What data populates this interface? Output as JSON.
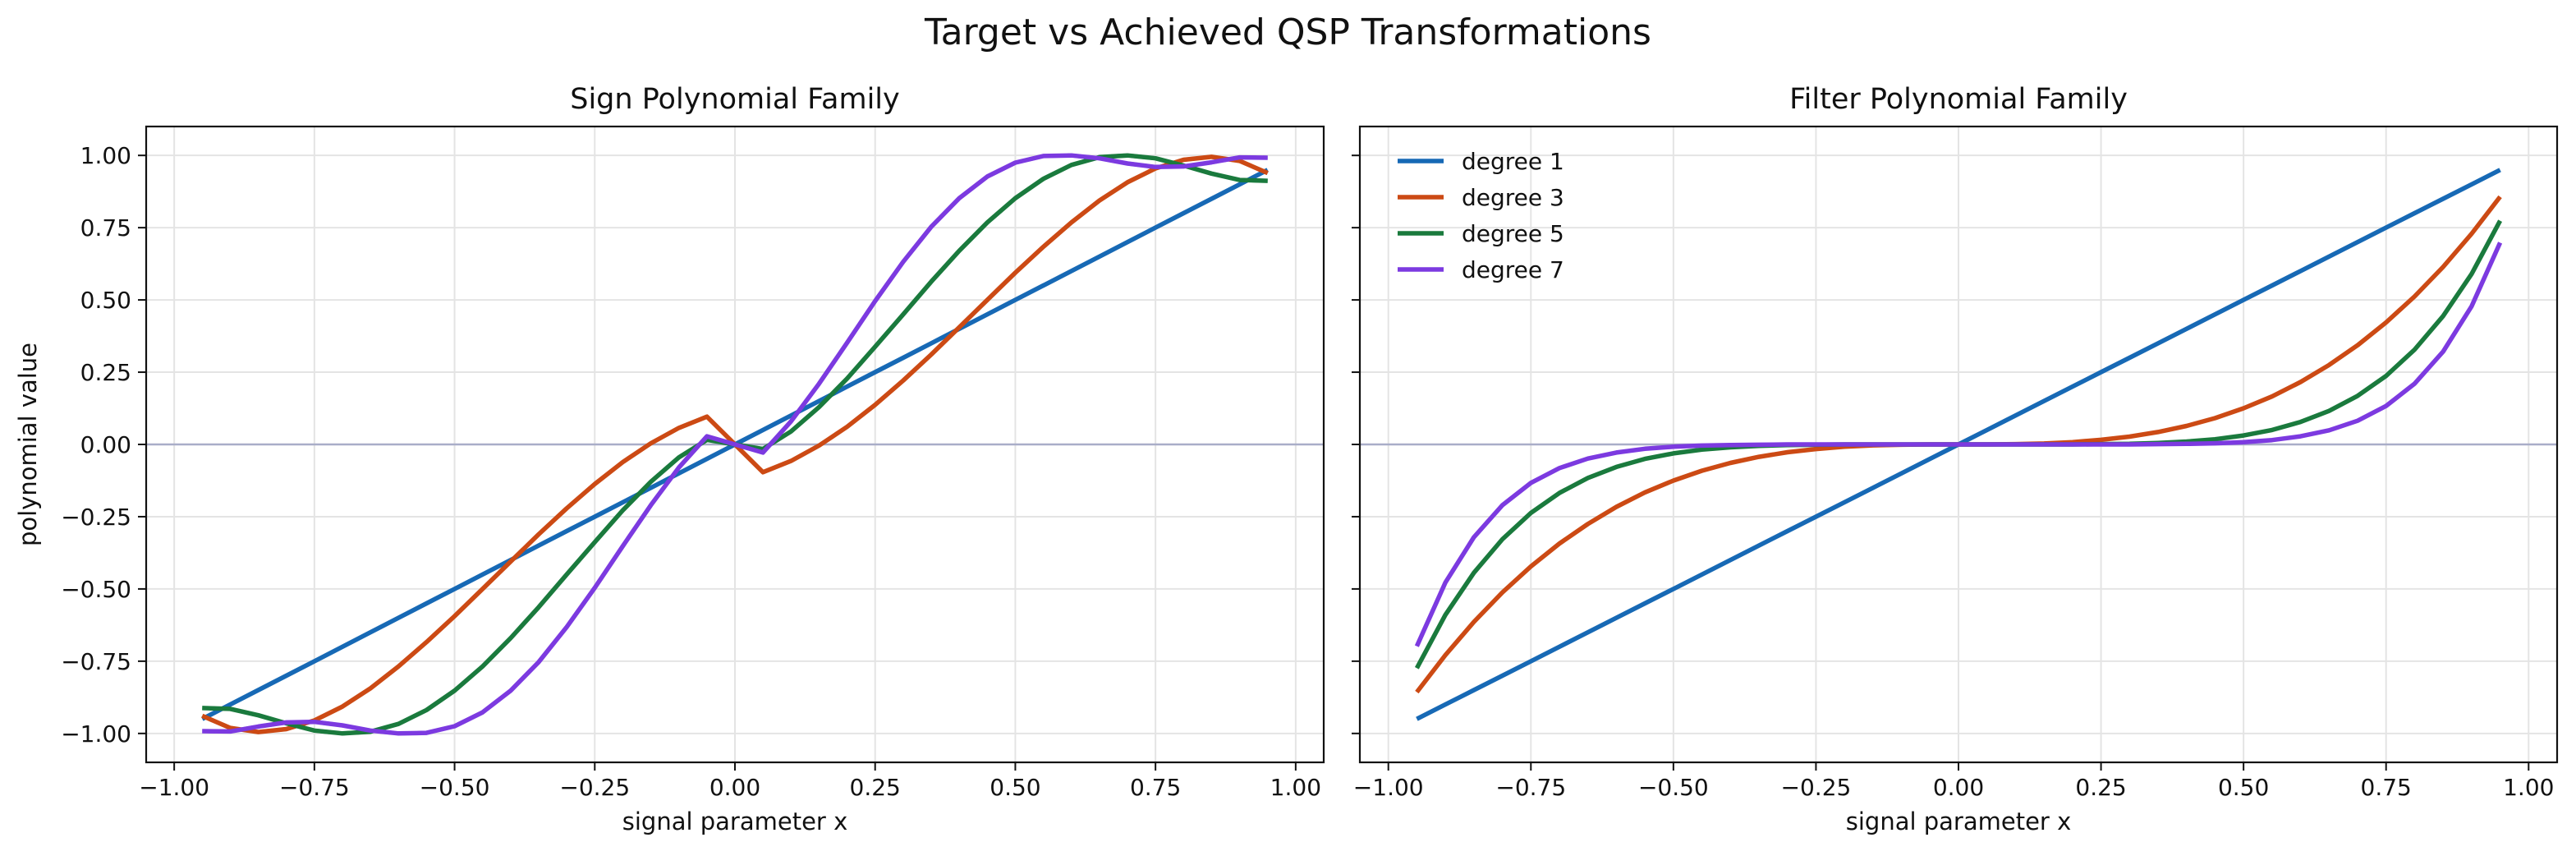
{
  "figure": {
    "title": "Target vs Achieved QSP Transformations"
  },
  "chart_data": [
    {
      "type": "line",
      "title": "Sign Polynomial Family",
      "xlabel": "signal parameter x",
      "ylabel": "polynomial value",
      "xlim": [
        -1.05,
        1.05
      ],
      "ylim": [
        -1.1,
        1.1
      ],
      "xticks": [
        -1.0,
        -0.75,
        -0.5,
        -0.25,
        0.0,
        0.25,
        0.5,
        0.75,
        1.0
      ],
      "xtick_labels": [
        "−1.00",
        "−0.75",
        "−0.50",
        "−0.25",
        "0.00",
        "0.25",
        "0.50",
        "0.75",
        "1.00"
      ],
      "yticks": [
        -1.0,
        -0.75,
        -0.5,
        -0.25,
        0.0,
        0.25,
        0.5,
        0.75,
        1.0
      ],
      "ytick_labels": [
        "−1.00",
        "−0.75",
        "−0.50",
        "−0.25",
        "0.00",
        "0.25",
        "0.50",
        "0.75",
        "1.00"
      ],
      "grid": true,
      "legend": "none",
      "x": [
        -0.95,
        -0.9,
        -0.85,
        -0.8,
        -0.75,
        -0.7,
        -0.65,
        -0.6,
        -0.55,
        -0.5,
        -0.45,
        -0.4,
        -0.35,
        -0.3,
        -0.25,
        -0.2,
        -0.15,
        -0.1,
        -0.05,
        0.0,
        0.05,
        0.1,
        0.15,
        0.2,
        0.25,
        0.3,
        0.35,
        0.4,
        0.45,
        0.5,
        0.55,
        0.6,
        0.65,
        0.7,
        0.75,
        0.8,
        0.85,
        0.9,
        0.95
      ],
      "series": [
        {
          "name": "degree 1",
          "color": "#1769b5",
          "values": [
            -0.95,
            -0.9,
            -0.85,
            -0.8,
            -0.75,
            -0.7,
            -0.65,
            -0.6,
            -0.55,
            -0.5,
            -0.45,
            -0.4,
            -0.35,
            -0.3,
            -0.25,
            -0.2,
            -0.15,
            -0.1,
            -0.05,
            0.0,
            0.05,
            0.1,
            0.15,
            0.2,
            0.25,
            0.3,
            0.35,
            0.4,
            0.45,
            0.5,
            0.55,
            0.6,
            0.65,
            0.7,
            0.75,
            0.8,
            0.85,
            0.9,
            0.95
          ]
        },
        {
          "name": "degree 3",
          "color": "#cc4a14",
          "values": [
            -0.939,
            -0.981,
            -0.995,
            -0.985,
            -0.955,
            -0.907,
            -0.844,
            -0.768,
            -0.684,
            -0.594,
            -0.5,
            -0.405,
            -0.311,
            -0.221,
            -0.137,
            -0.061,
            0.004,
            0.057,
            0.096,
            0.0,
            -0.096,
            -0.057,
            -0.004,
            0.061,
            0.137,
            0.221,
            0.311,
            0.405,
            0.5,
            0.594,
            0.684,
            0.768,
            0.844,
            0.907,
            0.955,
            0.985,
            0.995,
            0.981,
            0.939
          ]
        },
        {
          "name": "degree 5",
          "color": "#1a7a3d",
          "values": [
            -0.912,
            -0.915,
            -0.937,
            -0.965,
            -0.99,
            -1.0,
            -0.994,
            -0.967,
            -0.919,
            -0.852,
            -0.768,
            -0.67,
            -0.563,
            -0.45,
            -0.338,
            -0.228,
            -0.129,
            -0.045,
            0.016,
            0.0,
            -0.016,
            0.045,
            0.129,
            0.228,
            0.338,
            0.45,
            0.563,
            0.67,
            0.768,
            0.852,
            0.919,
            0.967,
            0.994,
            1.0,
            0.99,
            0.965,
            0.937,
            0.915,
            0.912
          ]
        },
        {
          "name": "degree 7",
          "color": "#7c3ae0",
          "values": [
            -0.992,
            -0.993,
            -0.976,
            -0.962,
            -0.96,
            -0.972,
            -0.99,
            -1.0,
            -0.998,
            -0.975,
            -0.927,
            -0.852,
            -0.753,
            -0.632,
            -0.496,
            -0.352,
            -0.21,
            -0.08,
            0.028,
            0.0,
            -0.028,
            0.08,
            0.21,
            0.352,
            0.496,
            0.632,
            0.753,
            0.852,
            0.927,
            0.975,
            0.998,
            1.0,
            0.99,
            0.972,
            0.96,
            0.962,
            0.976,
            0.993,
            0.992
          ]
        }
      ]
    },
    {
      "type": "line",
      "title": "Filter Polynomial Family",
      "xlabel": "signal parameter x",
      "ylabel": "",
      "xlim": [
        -1.05,
        1.05
      ],
      "ylim": [
        -1.1,
        1.1
      ],
      "xticks": [
        -1.0,
        -0.75,
        -0.5,
        -0.25,
        0.0,
        0.25,
        0.5,
        0.75,
        1.0
      ],
      "xtick_labels": [
        "−1.00",
        "−0.75",
        "−0.50",
        "−0.25",
        "0.00",
        "0.25",
        "0.50",
        "0.75",
        "1.00"
      ],
      "grid": true,
      "legend": "top-left",
      "x": [
        -0.95,
        -0.9,
        -0.85,
        -0.8,
        -0.75,
        -0.7,
        -0.65,
        -0.6,
        -0.55,
        -0.5,
        -0.45,
        -0.4,
        -0.35,
        -0.3,
        -0.25,
        -0.2,
        -0.15,
        -0.1,
        -0.05,
        0.0,
        0.05,
        0.1,
        0.15,
        0.2,
        0.25,
        0.3,
        0.35,
        0.4,
        0.45,
        0.5,
        0.55,
        0.6,
        0.65,
        0.7,
        0.75,
        0.8,
        0.85,
        0.9,
        0.95
      ],
      "series": [
        {
          "name": "degree 1",
          "color": "#1769b5",
          "values": [
            -0.95,
            -0.9,
            -0.85,
            -0.8,
            -0.75,
            -0.7,
            -0.65,
            -0.6,
            -0.55,
            -0.5,
            -0.45,
            -0.4,
            -0.35,
            -0.3,
            -0.25,
            -0.2,
            -0.15,
            -0.1,
            -0.05,
            0.0,
            0.05,
            0.1,
            0.15,
            0.2,
            0.25,
            0.3,
            0.35,
            0.4,
            0.45,
            0.5,
            0.55,
            0.6,
            0.65,
            0.7,
            0.75,
            0.8,
            0.85,
            0.9,
            0.95
          ]
        },
        {
          "name": "degree 3",
          "color": "#cc4a14",
          "values": [
            -0.857,
            -0.729,
            -0.614,
            -0.512,
            -0.422,
            -0.343,
            -0.275,
            -0.216,
            -0.166,
            -0.125,
            -0.091,
            -0.064,
            -0.043,
            -0.027,
            -0.016,
            -0.008,
            -0.003,
            -0.001,
            0.0,
            0.0,
            0.0,
            0.001,
            0.003,
            0.008,
            0.016,
            0.027,
            0.043,
            0.064,
            0.091,
            0.125,
            0.166,
            0.216,
            0.275,
            0.343,
            0.422,
            0.512,
            0.614,
            0.729,
            0.857
          ]
        },
        {
          "name": "degree 5",
          "color": "#1a7a3d",
          "values": [
            -0.774,
            -0.59,
            -0.444,
            -0.328,
            -0.237,
            -0.168,
            -0.116,
            -0.078,
            -0.05,
            -0.031,
            -0.018,
            -0.01,
            -0.005,
            -0.002,
            -0.001,
            0.0,
            0.0,
            0.0,
            0.0,
            0.0,
            0.0,
            0.0,
            0.0,
            0.0,
            0.001,
            0.002,
            0.005,
            0.01,
            0.018,
            0.031,
            0.05,
            0.078,
            0.116,
            0.168,
            0.237,
            0.328,
            0.444,
            0.59,
            0.774
          ]
        },
        {
          "name": "degree 7",
          "color": "#7c3ae0",
          "values": [
            -0.698,
            -0.478,
            -0.321,
            -0.21,
            -0.133,
            -0.082,
            -0.049,
            -0.028,
            -0.015,
            -0.008,
            -0.004,
            -0.002,
            -0.001,
            0.0,
            0.0,
            0.0,
            0.0,
            0.0,
            0.0,
            0.0,
            0.0,
            0.0,
            0.0,
            0.0,
            0.0,
            0.0,
            0.001,
            0.002,
            0.004,
            0.008,
            0.015,
            0.028,
            0.049,
            0.082,
            0.133,
            0.21,
            0.321,
            0.478,
            0.698
          ]
        }
      ]
    }
  ]
}
